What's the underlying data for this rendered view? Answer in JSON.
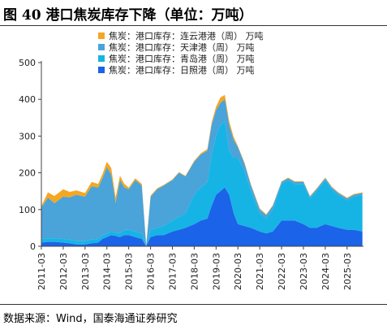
{
  "figure": {
    "title": "图 40 港口焦炭库存下降（单位：万吨）",
    "source": "数据来源：Wind，国泰海通证券研究"
  },
  "colors": {
    "lianyungang": "#f5a623",
    "tianjin": "#4aa3d9",
    "qingdao": "#16b4e5",
    "rizhao": "#1b63e8"
  },
  "chart_data": {
    "type": "area",
    "stacked": true,
    "title": "",
    "xlabel": "",
    "ylabel": "",
    "ylim": [
      0,
      500
    ],
    "yticks": [
      0,
      100,
      200,
      300,
      400,
      500
    ],
    "xticks": [
      "2011-03",
      "2012-03",
      "2013-03",
      "2014-03",
      "2015-03",
      "2016-03",
      "2017-03",
      "2018-03",
      "2019-03",
      "2020-03",
      "2021-03",
      "2022-03",
      "2023-03",
      "2024-03",
      "2025-03"
    ],
    "legend_position": "top-center",
    "grid": false,
    "x": [
      2011.2,
      2011.5,
      2011.8,
      2012.2,
      2012.5,
      2012.8,
      2013.2,
      2013.5,
      2013.8,
      2014.0,
      2014.2,
      2014.4,
      2014.6,
      2014.8,
      2015.0,
      2015.2,
      2015.5,
      2015.8,
      2016.0,
      2016.2,
      2016.5,
      2016.8,
      2017.2,
      2017.5,
      2017.8,
      2018.2,
      2018.5,
      2018.8,
      2019.0,
      2019.2,
      2019.4,
      2019.6,
      2019.8,
      2020.0,
      2020.2,
      2020.5,
      2020.8,
      2021.2,
      2021.5,
      2021.8,
      2022.2,
      2022.5,
      2022.8,
      2023.2,
      2023.5,
      2023.8,
      2024.2,
      2024.5,
      2024.8,
      2025.2,
      2025.5,
      2025.9
    ],
    "series": [
      {
        "name": "焦炭：港口库存：连云港港（周） 万吨",
        "values": [
          5,
          15,
          20,
          20,
          15,
          12,
          10,
          12,
          10,
          12,
          15,
          18,
          15,
          12,
          10,
          5,
          5,
          5,
          5,
          3,
          3,
          2,
          2,
          2,
          2,
          3,
          3,
          5,
          8,
          10,
          15,
          12,
          10,
          8,
          3,
          3,
          3,
          3,
          2,
          2,
          2,
          2,
          2,
          2,
          2,
          2,
          2,
          2,
          2,
          2,
          2,
          2
        ]
      },
      {
        "name": "焦炭：港口库存：天津港（周） 万吨",
        "values": [
          85,
          110,
          95,
          115,
          115,
          125,
          120,
          145,
          140,
          155,
          180,
          155,
          80,
          145,
          115,
          110,
          140,
          130,
          0,
          90,
          105,
          110,
          110,
          120,
          100,
          90,
          90,
          85,
          80,
          70,
          60,
          60,
          70,
          50,
          30,
          20,
          15,
          10,
          10,
          10,
          5,
          5,
          5,
          5,
          5,
          5,
          5,
          5,
          5,
          5,
          5,
          5
        ]
      },
      {
        "name": "焦炭：港口库存：青岛港（周） 万吨",
        "values": [
          10,
          10,
          10,
          10,
          10,
          10,
          10,
          10,
          10,
          10,
          10,
          10,
          10,
          10,
          15,
          15,
          15,
          15,
          0,
          20,
          20,
          25,
          30,
          35,
          40,
          80,
          90,
          100,
          140,
          160,
          180,
          180,
          120,
          150,
          180,
          150,
          100,
          50,
          40,
          60,
          100,
          110,
          100,
          110,
          80,
          100,
          120,
          100,
          90,
          80,
          90,
          100
        ]
      },
      {
        "name": "焦炭：港口库存：日照港（周） 万吨",
        "values": [
          10,
          12,
          12,
          10,
          8,
          5,
          5,
          8,
          10,
          20,
          25,
          30,
          28,
          25,
          30,
          30,
          25,
          20,
          0,
          25,
          30,
          30,
          40,
          45,
          50,
          60,
          70,
          75,
          110,
          140,
          150,
          160,
          140,
          90,
          60,
          55,
          50,
          40,
          35,
          40,
          70,
          70,
          70,
          60,
          50,
          50,
          60,
          55,
          50,
          45,
          45,
          40
        ]
      }
    ]
  }
}
